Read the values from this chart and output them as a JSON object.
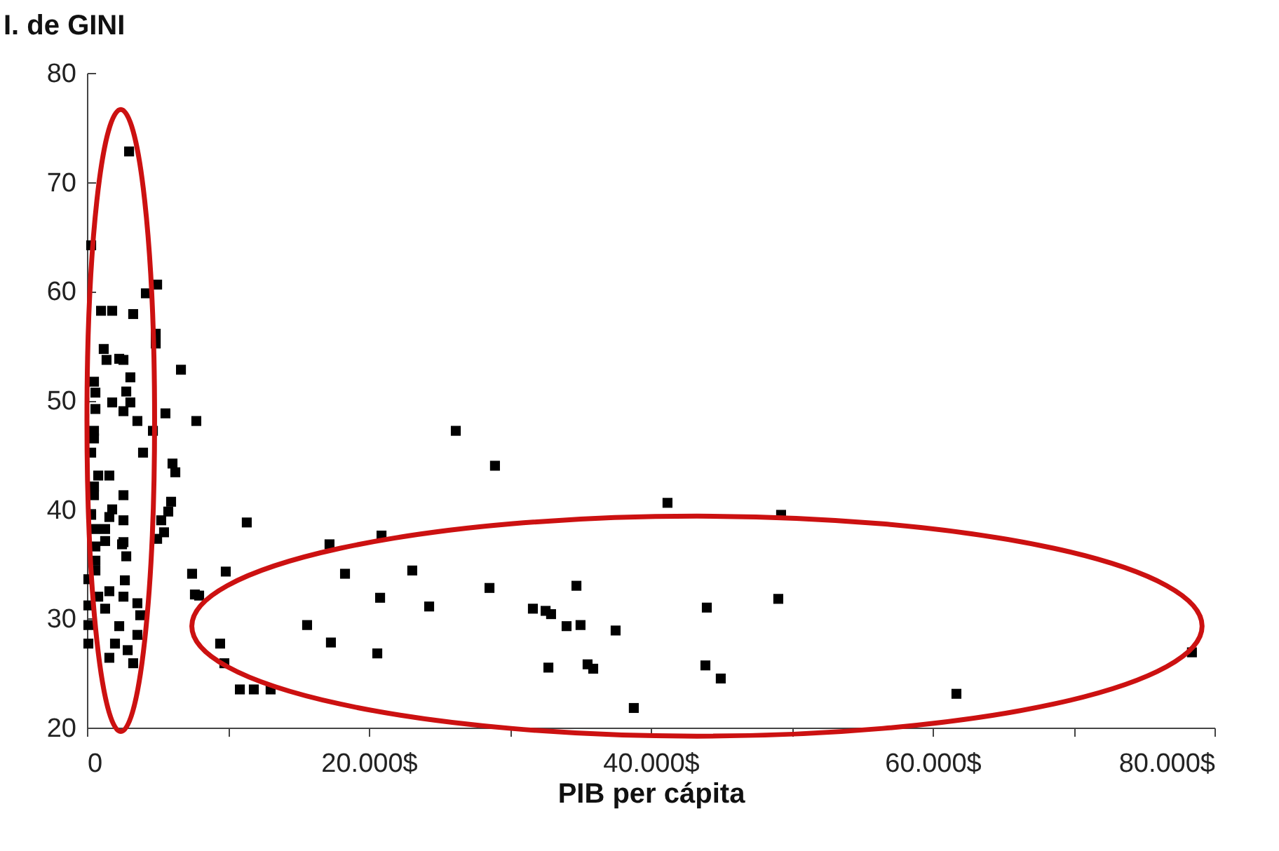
{
  "chart_data": {
    "type": "scatter",
    "ylabel": "I. de GINI",
    "xlabel": "PIB per cápita",
    "marker": "square",
    "grid": false,
    "xlim": [
      0,
      80000
    ],
    "ylim": [
      20,
      80
    ],
    "xticks": [
      {
        "value": 0,
        "label": "0"
      },
      {
        "value": 10000,
        "label": null
      },
      {
        "value": 20000,
        "label": "20.000$"
      },
      {
        "value": 30000,
        "label": null
      },
      {
        "value": 40000,
        "label": "40.000$"
      },
      {
        "value": 50000,
        "label": null
      },
      {
        "value": 60000,
        "label": "60.000$"
      },
      {
        "value": 70000,
        "label": null
      },
      {
        "value": 80000,
        "label": "80.000$"
      }
    ],
    "yticks": [
      20,
      30,
      40,
      50,
      60,
      70,
      80
    ],
    "series": [
      {
        "color": "#000000",
        "x": [
          26170,
          28950,
          41190,
          49250,
          24280,
          28560,
          34730,
          31640,
          32540,
          32930,
          34030,
          35020,
          37510,
          43980,
          49050,
          32740,
          35520,
          35920,
          43880,
          44970,
          38800,
          61690,
          78400,
          11340,
          20900,
          17210,
          18310,
          23080,
          20800,
          15620,
          17310,
          20600,
          9450,
          9750,
          10850,
          11840,
          13030,
          9850,
          7960,
          2990,
          300,
          4980,
          4180,
          1000,
          1790,
          3280,
          4880,
          4880,
          1190,
          1390,
          2290,
          2590,
          6670,
          3080,
          500,
          600,
          2790,
          1790,
          3080,
          600,
          2590,
          3580,
          5570,
          7760,
          500,
          4680,
          500,
          300,
          3980,
          6070,
          6270,
          800,
          1590,
          500,
          500,
          2590,
          5970,
          1790,
          300,
          1590,
          5770,
          2590,
          5270,
          600,
          1290,
          5470,
          4980,
          1290,
          2590,
          2490,
          600,
          2790,
          600,
          600,
          7460,
          100,
          2690,
          7660,
          800,
          1590,
          2590,
          3580,
          100,
          1290,
          3780,
          100,
          2290,
          3580,
          100,
          1990,
          2890,
          1590,
          3280
        ],
        "values": [
          47.2,
          44.0,
          40.6,
          39.5,
          31.1,
          32.8,
          33.0,
          30.9,
          30.7,
          30.4,
          29.3,
          29.4,
          28.9,
          31.0,
          31.8,
          25.5,
          25.8,
          25.4,
          25.7,
          24.5,
          21.8,
          23.1,
          26.9,
          38.8,
          37.6,
          36.8,
          34.1,
          34.4,
          31.9,
          29.4,
          27.8,
          26.8,
          27.7,
          25.9,
          23.5,
          23.5,
          23.5,
          34.3,
          32.1,
          72.8,
          64.2,
          60.6,
          59.8,
          58.2,
          58.2,
          57.9,
          56.1,
          55.2,
          54.7,
          53.7,
          53.8,
          53.7,
          52.8,
          52.1,
          51.7,
          50.7,
          50.8,
          49.8,
          49.8,
          49.2,
          49.0,
          48.1,
          48.8,
          48.1,
          47.2,
          47.2,
          46.5,
          45.2,
          45.2,
          44.2,
          43.4,
          43.1,
          43.1,
          42.1,
          41.3,
          41.3,
          40.7,
          40.0,
          39.5,
          39.3,
          39.8,
          39.0,
          39.0,
          38.2,
          38.2,
          37.9,
          37.3,
          37.1,
          37.0,
          36.8,
          36.6,
          35.7,
          35.3,
          34.4,
          34.1,
          33.6,
          33.5,
          32.2,
          32.0,
          32.5,
          32.0,
          31.4,
          31.2,
          30.9,
          30.3,
          29.4,
          29.3,
          28.5,
          27.7,
          27.7,
          27.1,
          26.4,
          25.9
        ]
      }
    ]
  }
}
